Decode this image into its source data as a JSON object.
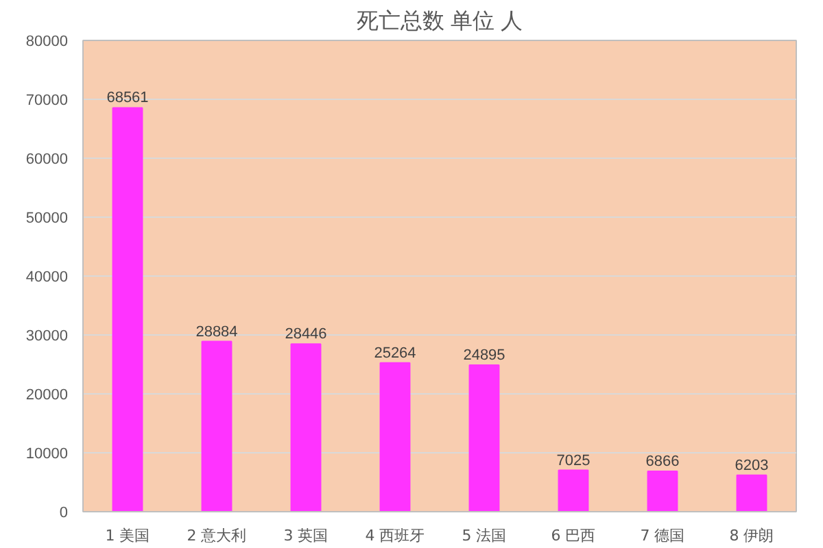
{
  "chart_data": {
    "type": "bar",
    "title": "死亡总数 单位 人",
    "categories": [
      "1 美国",
      "2 意大利",
      "3 英国",
      "4 西班牙",
      "5 法国",
      "6 巴西",
      "7 德国",
      "8 伊朗"
    ],
    "values": [
      68561,
      28884,
      28446,
      25264,
      24895,
      7025,
      6866,
      6203
    ],
    "color": "#ff33ff",
    "data_labels": true,
    "grid": "y",
    "ylim": [
      0,
      80000
    ],
    "yticks": [
      0,
      10000,
      20000,
      30000,
      40000,
      50000,
      60000,
      70000,
      80000
    ]
  }
}
